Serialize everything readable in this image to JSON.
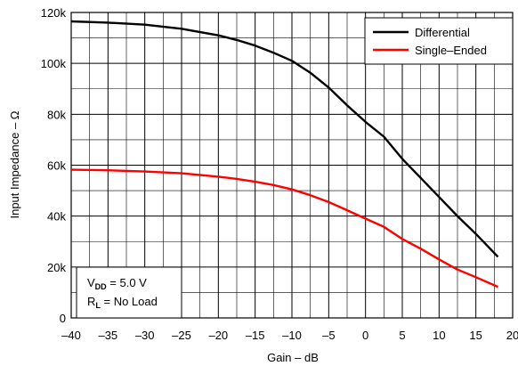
{
  "chart_data": {
    "type": "line",
    "title": "",
    "xlabel": "Gain – dB",
    "ylabel": "Input Impedance – Ω",
    "xlim": [
      -40,
      20
    ],
    "ylim": [
      0,
      120000
    ],
    "x_ticks": [
      -40,
      -35,
      -30,
      -25,
      -20,
      -15,
      -10,
      -5,
      0,
      5,
      10,
      15,
      20
    ],
    "x_tick_labels": [
      "–40",
      "–35",
      "–30",
      "–25",
      "–20",
      "–15",
      "–10",
      "–5",
      "0",
      "5",
      "10",
      "15",
      "20"
    ],
    "y_ticks": [
      0,
      20000,
      40000,
      60000,
      80000,
      100000,
      120000
    ],
    "y_tick_labels": [
      "0",
      "20k",
      "40k",
      "60k",
      "80k",
      "100k",
      "120k"
    ],
    "x_minor_step": 2.5,
    "y_minor_step": 10000,
    "grid": true,
    "legend_position": "top-right",
    "series": [
      {
        "name": "Differential",
        "color": "#000000",
        "x": [
          -40,
          -35,
          -30,
          -25,
          -20,
          -17.5,
          -15,
          -12.5,
          -10,
          -7.5,
          -5,
          -2.5,
          0,
          2.5,
          5,
          7.5,
          10,
          12.5,
          15,
          18
        ],
        "y": [
          116500,
          116000,
          115200,
          113600,
          111000,
          109200,
          107000,
          104200,
          101000,
          96300,
          90500,
          83500,
          77000,
          71200,
          62500,
          55000,
          47500,
          40000,
          33000,
          24000
        ]
      },
      {
        "name": "Single–Ended",
        "color": "#ff0000",
        "x": [
          -40,
          -35,
          -30,
          -25,
          -20,
          -17.5,
          -15,
          -12.5,
          -10,
          -7.5,
          -5,
          -2.5,
          0,
          2.5,
          5,
          7.5,
          10,
          12.5,
          15,
          18
        ],
        "y": [
          58200,
          58000,
          57500,
          56800,
          55500,
          54600,
          53500,
          52200,
          50500,
          48200,
          45500,
          42300,
          39000,
          35800,
          31000,
          27200,
          23000,
          19000,
          16000,
          12200
        ]
      }
    ],
    "annotation": {
      "line1_main": "V",
      "line1_sub": "DD",
      "line1_rest": " = 5.0 V",
      "line2_main": "R",
      "line2_sub": "L",
      "line2_rest": " = No Load"
    }
  }
}
